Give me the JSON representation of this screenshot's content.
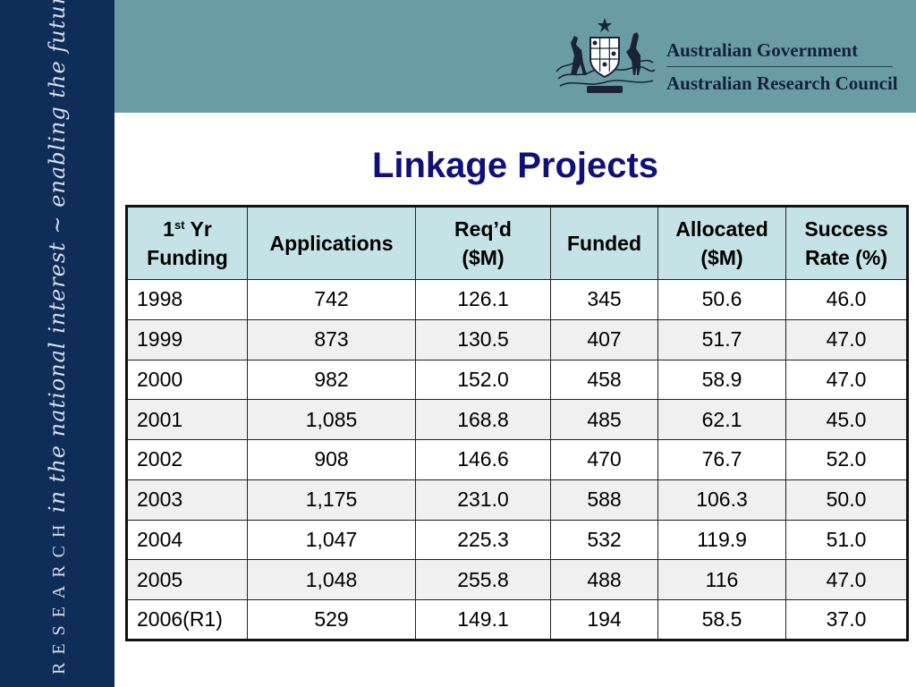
{
  "sidebar": {
    "caps_text": "RESEARCH",
    "script_text": "in the national interest ~ enabling the future"
  },
  "header": {
    "org_name": "Australian Government",
    "council_name": "Australian Research Council",
    "crest_icon": "coat-of-arms-icon"
  },
  "title": "Linkage Projects",
  "table": {
    "headers": {
      "year_num": "1",
      "year_sup": "st",
      "year_rest": "Yr",
      "year_line2": "Funding",
      "applications": "Applications",
      "reqd_line1": "Req’d",
      "reqd_line2": "($M)",
      "funded": "Funded",
      "allocated_line1": "Allocated",
      "allocated_line2": "($M)",
      "success_line1": "Success",
      "success_line2": "Rate (%)"
    },
    "rows": [
      {
        "year": "1998",
        "applications": "742",
        "reqd": "126.1",
        "funded": "345",
        "allocated": "50.6",
        "success": "46.0"
      },
      {
        "year": "1999",
        "applications": "873",
        "reqd": "130.5",
        "funded": "407",
        "allocated": "51.7",
        "success": "47.0"
      },
      {
        "year": "2000",
        "applications": "982",
        "reqd": "152.0",
        "funded": "458",
        "allocated": "58.9",
        "success": "47.0"
      },
      {
        "year": "2001",
        "applications": "1,085",
        "reqd": "168.8",
        "funded": "485",
        "allocated": "62.1",
        "success": "45.0"
      },
      {
        "year": "2002",
        "applications": "908",
        "reqd": "146.6",
        "funded": "470",
        "allocated": "76.7",
        "success": "52.0"
      },
      {
        "year": "2003",
        "applications": "1,175",
        "reqd": "231.0",
        "funded": "588",
        "allocated": "106.3",
        "success": "50.0"
      },
      {
        "year": "2004",
        "applications": "1,047",
        "reqd": "225.3",
        "funded": "532",
        "allocated": "119.9",
        "success": "51.0"
      },
      {
        "year": "2005",
        "applications": "1,048",
        "reqd": "255.8",
        "funded": "488",
        "allocated": "116",
        "success": "47.0"
      },
      {
        "year": "2006(R1)",
        "applications": "529",
        "reqd": "149.1",
        "funded": "194",
        "allocated": "58.5",
        "success": "37.0"
      }
    ]
  },
  "colors": {
    "sidebar": "#0f2d59",
    "header_band": "#6a9ca5",
    "title": "#10107a",
    "table_header": "#c5e3e6"
  }
}
